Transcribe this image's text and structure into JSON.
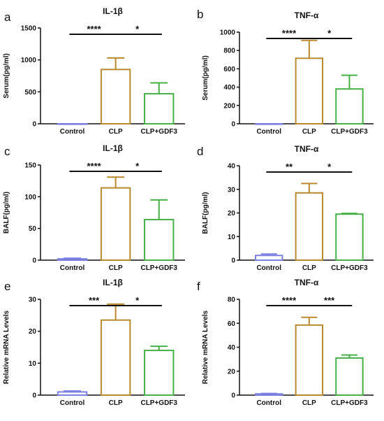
{
  "colors": {
    "control": "#7b7fe0",
    "clp": "#b88a2e",
    "gdf3": "#47b046"
  },
  "chart_data": [
    {
      "panel": "a",
      "type": "bar",
      "title": "IL-1β",
      "ylabel": "Serum(pg/ml)",
      "ylim": [
        0,
        1500
      ],
      "yticks": [
        0,
        500,
        1000,
        1500
      ],
      "categories": [
        "Control",
        "CLP",
        "CLP+GDF3"
      ],
      "values": [
        0,
        850,
        470
      ],
      "errors": [
        0,
        180,
        170
      ],
      "significance": [
        {
          "from": 0,
          "to": 1,
          "label": "****"
        },
        {
          "from": 1,
          "to": 2,
          "label": "*"
        }
      ]
    },
    {
      "panel": "b",
      "type": "bar",
      "title": "TNF-α",
      "ylabel": "Serum(pg/ml)",
      "ylim": [
        0,
        1000
      ],
      "yticks": [
        0,
        200,
        400,
        600,
        800,
        1000
      ],
      "categories": [
        "Control",
        "CLP",
        "CLP+GDF3"
      ],
      "values": [
        0,
        715,
        380
      ],
      "errors": [
        0,
        195,
        150
      ],
      "significance": [
        {
          "from": 0,
          "to": 1,
          "label": "****"
        },
        {
          "from": 1,
          "to": 2,
          "label": "*"
        }
      ]
    },
    {
      "panel": "c",
      "type": "bar",
      "title": "IL-1β",
      "ylabel": "BALF(pg/ml)",
      "ylim": [
        0,
        150
      ],
      "yticks": [
        0,
        50,
        100,
        150
      ],
      "categories": [
        "Control",
        "CLP",
        "CLP+GDF3"
      ],
      "values": [
        2,
        114,
        64
      ],
      "errors": [
        1,
        17,
        31
      ],
      "significance": [
        {
          "from": 0,
          "to": 1,
          "label": "****"
        },
        {
          "from": 1,
          "to": 2,
          "label": "*"
        }
      ]
    },
    {
      "panel": "d",
      "type": "bar",
      "title": "TNF-α",
      "ylabel": "BALF(pg/ml)",
      "ylim": [
        0,
        40
      ],
      "yticks": [
        0,
        10,
        20,
        30,
        40
      ],
      "categories": [
        "Control",
        "CLP",
        "CLP+GDF3"
      ],
      "values": [
        2,
        28.5,
        19.5
      ],
      "errors": [
        0.6,
        4,
        0.3
      ],
      "significance": [
        {
          "from": 0,
          "to": 1,
          "label": "**"
        },
        {
          "from": 1,
          "to": 2,
          "label": "*"
        }
      ]
    },
    {
      "panel": "e",
      "type": "bar",
      "title": "IL-1β",
      "ylabel": "Relative mRNA Levels",
      "ylim": [
        0,
        30
      ],
      "yticks": [
        0,
        10,
        20,
        30
      ],
      "categories": [
        "Control",
        "CLP",
        "CLP+GDF3"
      ],
      "values": [
        1,
        23.5,
        14
      ],
      "errors": [
        0.3,
        5,
        1.3
      ],
      "significance": [
        {
          "from": 0,
          "to": 1,
          "label": "***"
        },
        {
          "from": 1,
          "to": 2,
          "label": "*"
        }
      ]
    },
    {
      "panel": "f",
      "type": "bar",
      "title": "TNF-α",
      "ylabel": "Relative mRNA Levels",
      "ylim": [
        0,
        80
      ],
      "yticks": [
        0,
        20,
        40,
        60,
        80
      ],
      "categories": [
        "Control",
        "CLP",
        "CLP+GDF3"
      ],
      "values": [
        1,
        58.5,
        31
      ],
      "errors": [
        0.4,
        6.5,
        2.5
      ],
      "significance": [
        {
          "from": 0,
          "to": 1,
          "label": "****"
        },
        {
          "from": 1,
          "to": 2,
          "label": "***"
        }
      ]
    }
  ]
}
